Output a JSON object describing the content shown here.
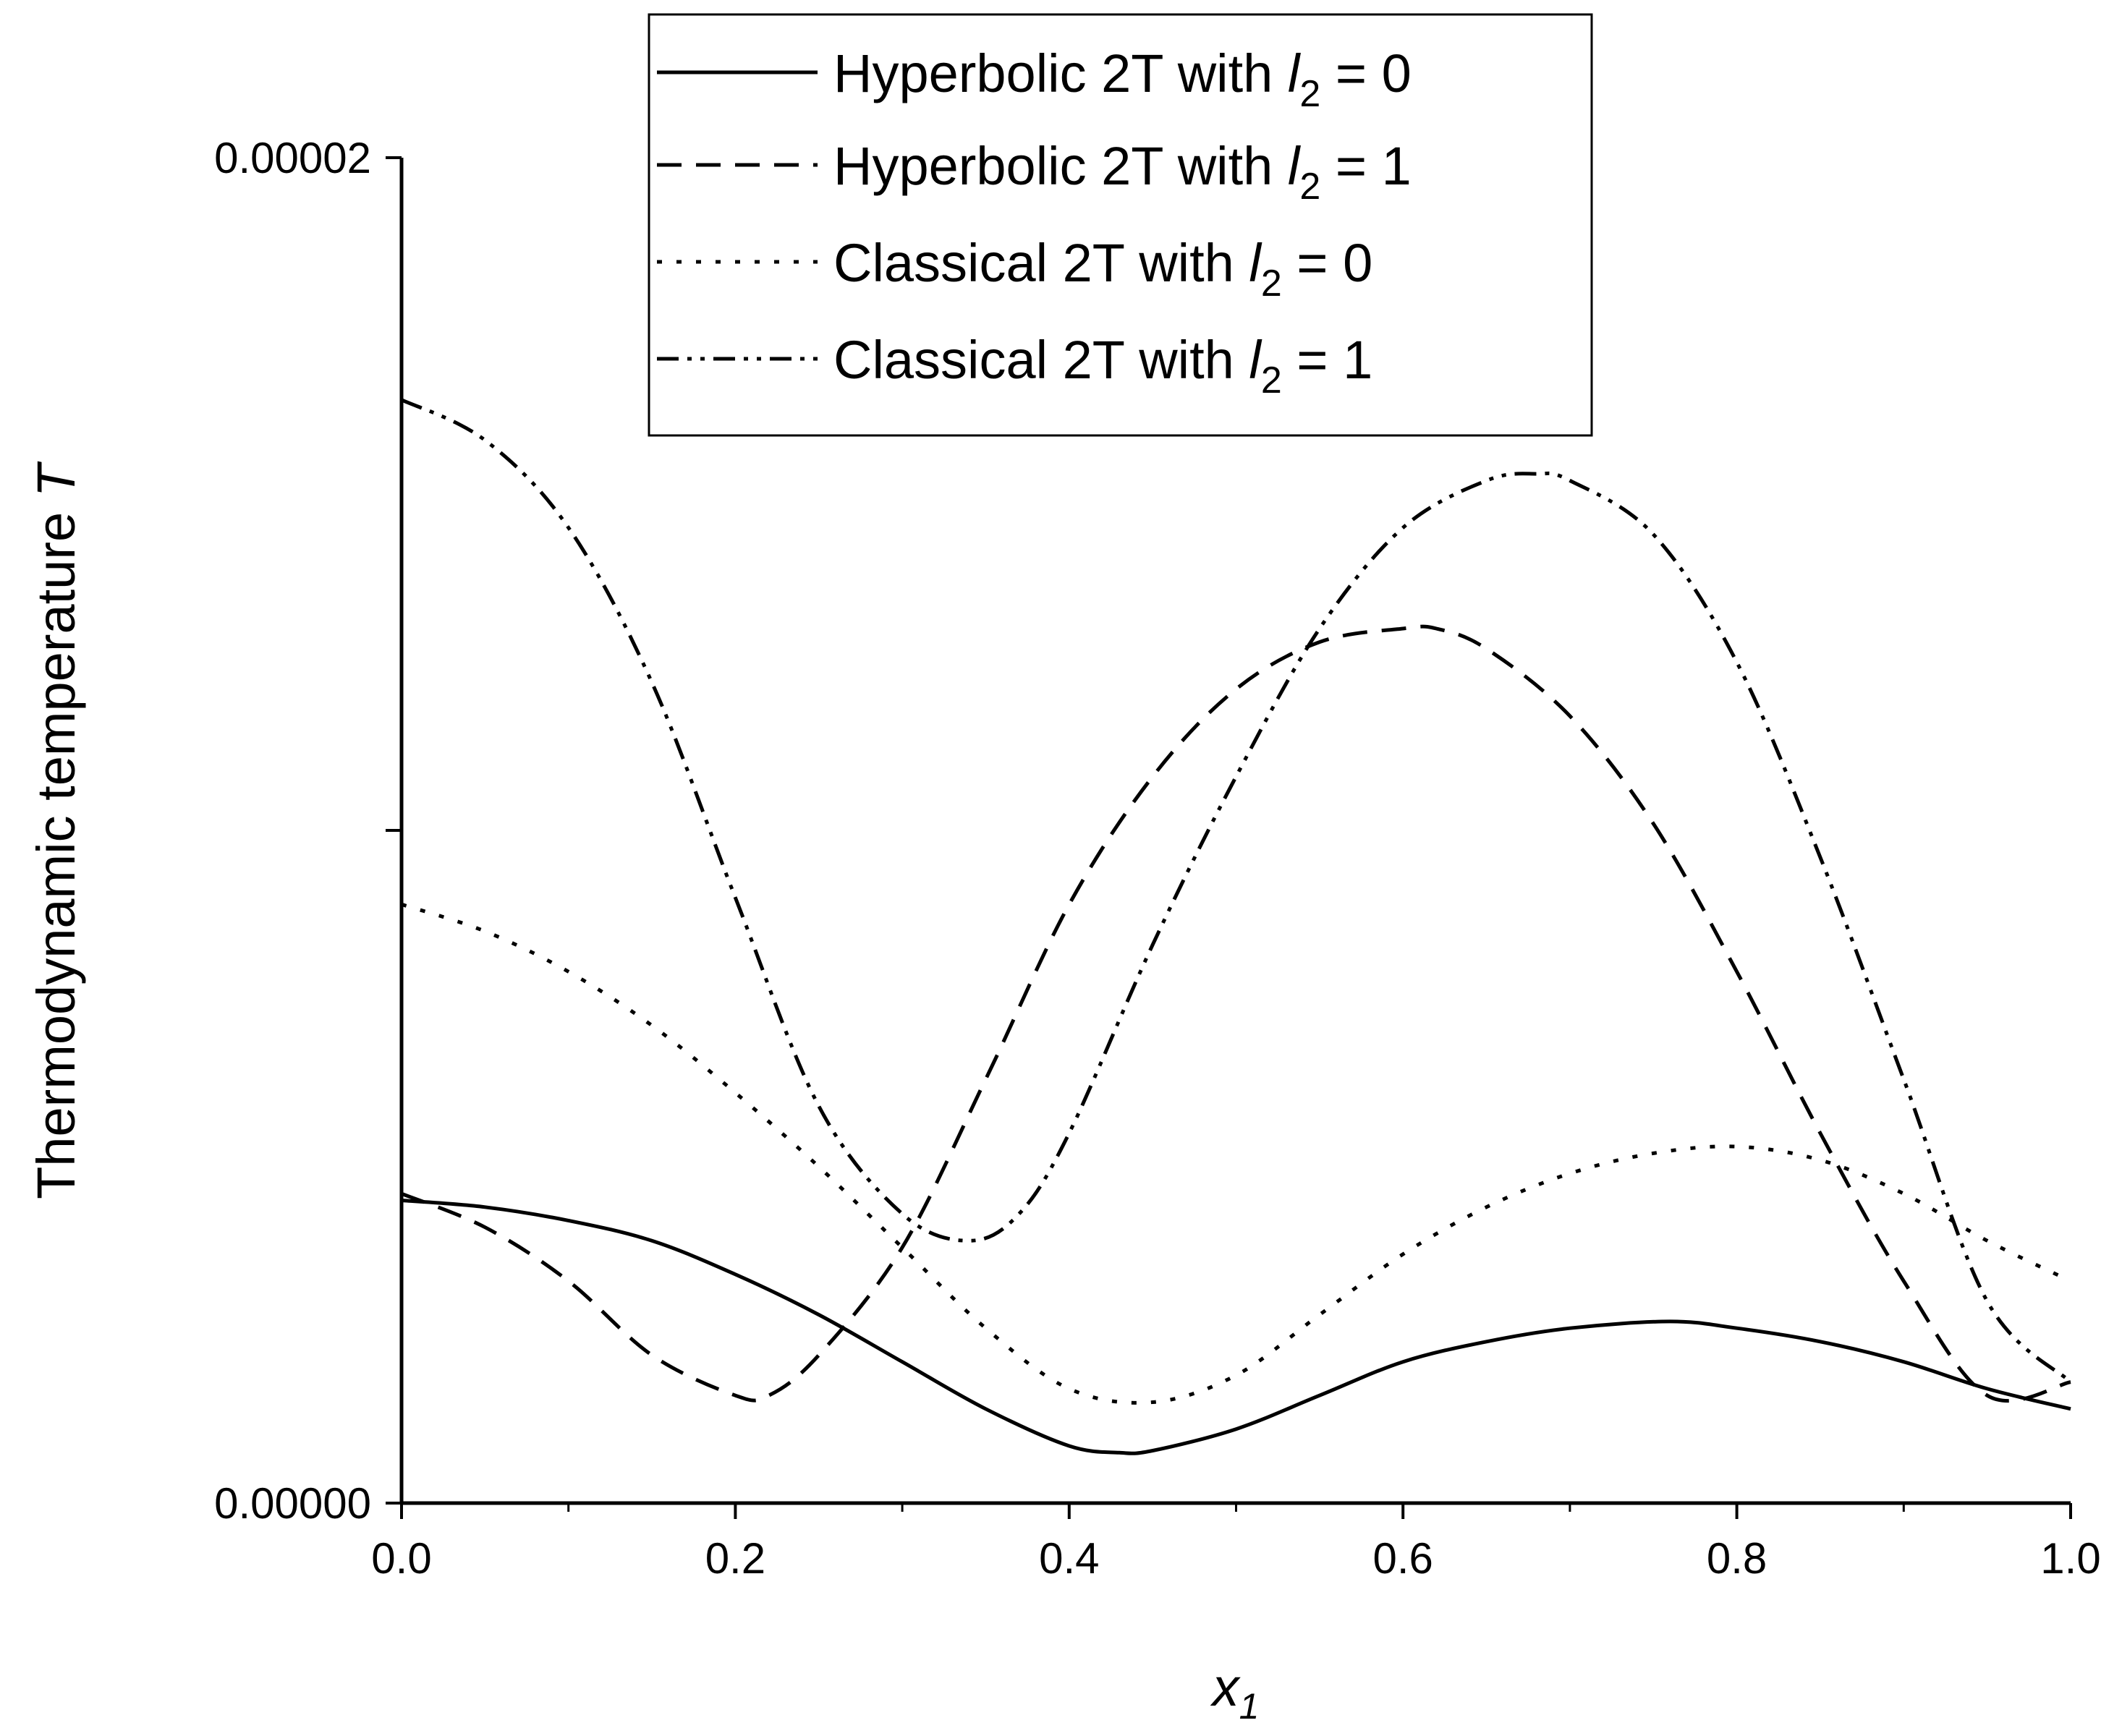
{
  "chart_data": {
    "type": "line",
    "title": "",
    "xlabel": {
      "base": "x",
      "sub": "1"
    },
    "ylabel": {
      "text": "Thermodynamic temperature ",
      "var": "T"
    },
    "xlim": [
      0,
      1
    ],
    "ylim": [
      0,
      2e-05
    ],
    "x_ticks": [
      {
        "value": 0.0,
        "label": "0.0"
      },
      {
        "value": 0.2,
        "label": "0.2"
      },
      {
        "value": 0.4,
        "label": "0.4"
      },
      {
        "value": 0.6,
        "label": "0.6"
      },
      {
        "value": 0.8,
        "label": "0.8"
      },
      {
        "value": 1.0,
        "label": "1.0"
      }
    ],
    "y_ticks": [
      {
        "value": 0,
        "label": "0.00000"
      },
      {
        "value": 1e-05,
        "label": ""
      },
      {
        "value": 2e-05,
        "label": "0.00002"
      }
    ],
    "legend_position": "top-center",
    "series": [
      {
        "name": "Hyperbolic 2T with l2 = 0",
        "legend": {
          "text": "Hyperbolic 2T with ",
          "var": "l",
          "sub": "2",
          "tail": " = 0"
        },
        "dash": "solid",
        "x": [
          0,
          0.05,
          0.1,
          0.15,
          0.2,
          0.25,
          0.3,
          0.35,
          0.4,
          0.43,
          0.45,
          0.5,
          0.55,
          0.6,
          0.65,
          0.7,
          0.76,
          0.8,
          0.85,
          0.9,
          0.95,
          1.0
        ],
        "y": [
          4.5e-06,
          4.4e-06,
          4.2e-06,
          3.9e-06,
          3.4e-06,
          2.8e-06,
          2.1e-06,
          1.4e-06,
          8.5e-07,
          7.5e-07,
          7.8e-07,
          1.1e-06,
          1.6e-06,
          2.1e-06,
          2.4e-06,
          2.6e-06,
          2.7e-06,
          2.6e-06,
          2.4e-06,
          2.1e-06,
          1.7e-06,
          1.4e-06
        ]
      },
      {
        "name": "Hyperbolic 2T with l2 = 1",
        "legend": {
          "text": "Hyperbolic 2T with ",
          "var": "l",
          "sub": "2",
          "tail": " = 1"
        },
        "dash": "dashed",
        "x": [
          0,
          0.05,
          0.1,
          0.15,
          0.2,
          0.22,
          0.25,
          0.3,
          0.35,
          0.4,
          0.45,
          0.5,
          0.55,
          0.6,
          0.62,
          0.65,
          0.7,
          0.75,
          0.8,
          0.85,
          0.9,
          0.95,
          1.0
        ],
        "y": [
          4.6e-06,
          4.1e-06,
          3.3e-06,
          2.2e-06,
          1.6e-06,
          1.6e-06,
          2.2e-06,
          3.8e-06,
          6.3e-06,
          8.9e-06,
          1.08e-05,
          1.21e-05,
          1.28e-05,
          1.3e-05,
          1.3e-05,
          1.27e-05,
          1.17e-05,
          1.01e-05,
          7.9e-06,
          5.5e-06,
          3.3e-06,
          1.6e-06,
          1.8e-06
        ]
      },
      {
        "name": "Classical 2T with l2 = 0",
        "legend": {
          "text": "Classical 2T with ",
          "var": "l",
          "sub": "2",
          "tail": " = 0"
        },
        "dash": "dotted",
        "x": [
          0,
          0.05,
          0.1,
          0.15,
          0.2,
          0.25,
          0.3,
          0.35,
          0.4,
          0.45,
          0.5,
          0.55,
          0.6,
          0.65,
          0.7,
          0.75,
          0.8,
          0.85,
          0.9,
          0.95,
          1.0
        ],
        "y": [
          8.9e-06,
          8.5e-06,
          7.9e-06,
          7.1e-06,
          6.1e-06,
          5e-06,
          3.8e-06,
          2.6e-06,
          1.7e-06,
          1.5e-06,
          1.9e-06,
          2.8e-06,
          3.7e-06,
          4.4e-06,
          4.9e-06,
          5.2e-06,
          5.3e-06,
          5.1e-06,
          4.6e-06,
          3.9e-06,
          3.3e-06
        ]
      },
      {
        "name": "Classical 2T with l2 = 1",
        "legend": {
          "text": "Classical 2T with ",
          "var": "l",
          "sub": "2",
          "tail": " = 1"
        },
        "dash": "dash-dot-dot",
        "x": [
          0,
          0.05,
          0.1,
          0.15,
          0.2,
          0.25,
          0.3,
          0.34,
          0.37,
          0.4,
          0.45,
          0.5,
          0.55,
          0.6,
          0.65,
          0.68,
          0.7,
          0.75,
          0.8,
          0.85,
          0.9,
          0.95,
          1.0
        ],
        "y": [
          1.64e-05,
          1.58e-05,
          1.45e-05,
          1.22e-05,
          9e-06,
          5.9e-06,
          4.3e-06,
          3.9e-06,
          4.3e-06,
          5.5e-06,
          8.3e-06,
          1.08e-05,
          1.3e-05,
          1.45e-05,
          1.52e-05,
          1.53e-05,
          1.52e-05,
          1.44e-05,
          1.25e-05,
          9.6e-06,
          6.3e-06,
          3e-06,
          1.8e-06
        ]
      }
    ]
  }
}
